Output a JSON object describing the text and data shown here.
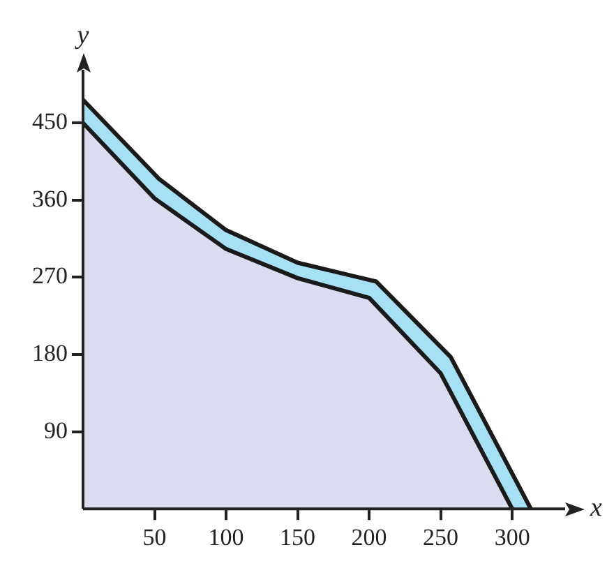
{
  "chart_data": {
    "type": "area",
    "xlabel": "x",
    "ylabel": "y",
    "xlim": [
      0,
      337
    ],
    "ylim": [
      0,
      512
    ],
    "xticks": [
      50,
      100,
      150,
      200,
      250,
      300
    ],
    "yticks": [
      90,
      180,
      270,
      360,
      450
    ],
    "grid": false,
    "legend": false,
    "series": [
      {
        "color": "#dcdcf0",
        "x": [
          0,
          50,
          100,
          150,
          200,
          250,
          300
        ],
        "values": [
          450,
          362,
          303,
          269,
          246,
          158,
          0
        ]
      },
      {
        "color": "#a6e0f5",
        "x": [
          0,
          53,
          100,
          150,
          205,
          257,
          313
        ],
        "values": [
          477,
          385,
          325,
          287,
          265,
          177,
          0
        ]
      }
    ]
  }
}
